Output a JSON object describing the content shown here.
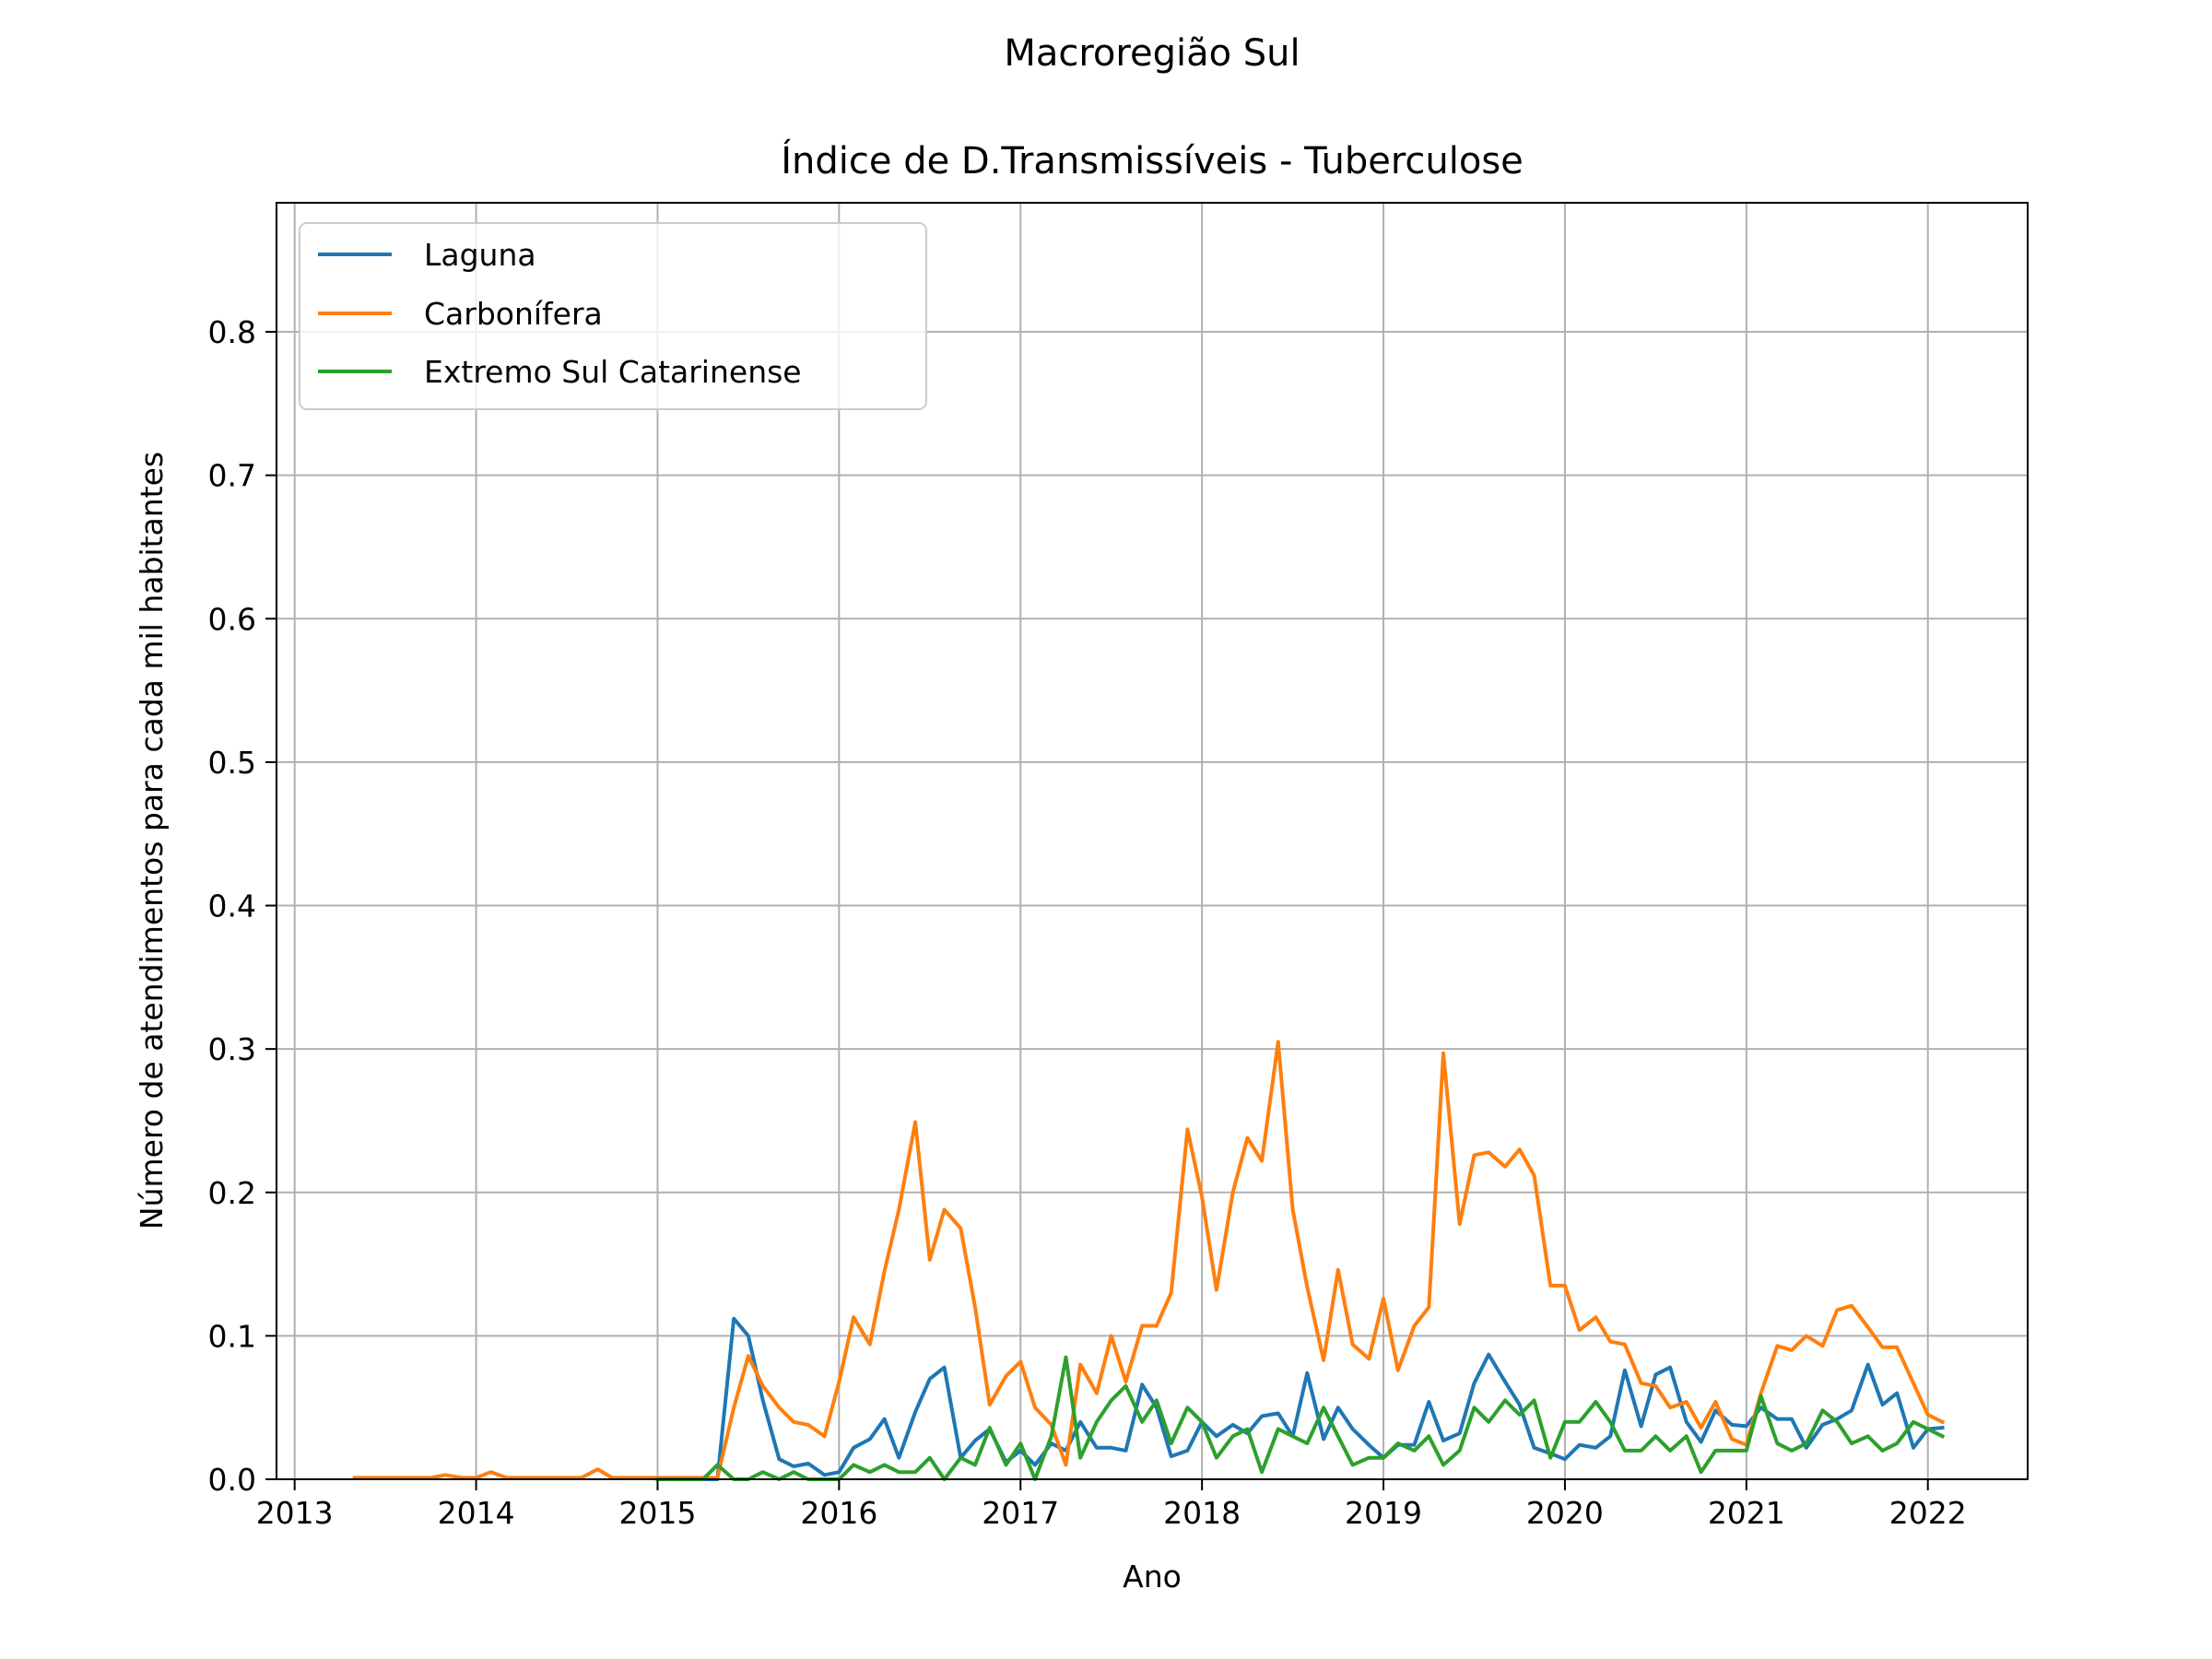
{
  "figure": {
    "suptitle": "Macroregião Sul",
    "title": "Índice de D.Transmissíveis - Tuberculose"
  },
  "chart_data": {
    "type": "line",
    "title": "Índice de D.Transmissíveis - Tuberculose",
    "xlabel": "Ano",
    "ylabel": "Número de atendimentos para cada mil habitantes",
    "xlim": [
      2012.9,
      2022.55
    ],
    "ylim": [
      0,
      0.89
    ],
    "xticks": [
      2013,
      2014,
      2015,
      2016,
      2017,
      2018,
      2019,
      2020,
      2021,
      2022
    ],
    "xtick_labels": [
      "2013",
      "2014",
      "2015",
      "2016",
      "2017",
      "2018",
      "2019",
      "2020",
      "2021",
      "2022"
    ],
    "yticks": [
      0.0,
      0.1,
      0.2,
      0.3,
      0.4,
      0.5,
      0.6,
      0.7,
      0.8
    ],
    "ytick_labels": [
      "0.0",
      "0.1",
      "0.2",
      "0.3",
      "0.4",
      "0.5",
      "0.6",
      "0.7",
      "0.8"
    ],
    "grid": true,
    "legend_position": "top-left",
    "series": [
      {
        "name": "Laguna",
        "color": "#1f77b4",
        "points": [
          [
            2015.0,
            0.0
          ],
          [
            2015.33,
            0.0
          ],
          [
            2015.42,
            0.112
          ],
          [
            2015.5,
            0.1
          ],
          [
            2015.58,
            0.055
          ],
          [
            2015.67,
            0.014
          ],
          [
            2015.75,
            0.009
          ],
          [
            2015.83,
            0.011
          ],
          [
            2015.92,
            0.003
          ],
          [
            2016.0,
            0.005
          ],
          [
            2016.08,
            0.022
          ],
          [
            2016.17,
            0.028
          ],
          [
            2016.25,
            0.042
          ],
          [
            2016.33,
            0.015
          ],
          [
            2016.42,
            0.047
          ],
          [
            2016.5,
            0.07
          ],
          [
            2016.58,
            0.078
          ],
          [
            2016.67,
            0.015
          ],
          [
            2016.75,
            0.027
          ],
          [
            2016.83,
            0.035
          ],
          [
            2016.92,
            0.012
          ],
          [
            2017.0,
            0.02
          ],
          [
            2017.08,
            0.01
          ],
          [
            2017.17,
            0.025
          ],
          [
            2017.25,
            0.02
          ],
          [
            2017.33,
            0.04
          ],
          [
            2017.42,
            0.022
          ],
          [
            2017.5,
            0.022
          ],
          [
            2017.58,
            0.02
          ],
          [
            2017.67,
            0.066
          ],
          [
            2017.75,
            0.05
          ],
          [
            2017.83,
            0.016
          ],
          [
            2017.92,
            0.02
          ],
          [
            2018.0,
            0.04
          ],
          [
            2018.08,
            0.03
          ],
          [
            2018.17,
            0.038
          ],
          [
            2018.25,
            0.032
          ],
          [
            2018.33,
            0.044
          ],
          [
            2018.42,
            0.046
          ],
          [
            2018.5,
            0.03
          ],
          [
            2018.58,
            0.074
          ],
          [
            2018.67,
            0.028
          ],
          [
            2018.75,
            0.05
          ],
          [
            2018.83,
            0.035
          ],
          [
            2018.92,
            0.024
          ],
          [
            2019.0,
            0.015
          ],
          [
            2019.08,
            0.024
          ],
          [
            2019.17,
            0.024
          ],
          [
            2019.25,
            0.054
          ],
          [
            2019.33,
            0.027
          ],
          [
            2019.42,
            0.032
          ],
          [
            2019.5,
            0.067
          ],
          [
            2019.58,
            0.087
          ],
          [
            2019.67,
            0.068
          ],
          [
            2019.75,
            0.052
          ],
          [
            2019.83,
            0.022
          ],
          [
            2019.92,
            0.018
          ],
          [
            2020.0,
            0.014
          ],
          [
            2020.08,
            0.024
          ],
          [
            2020.17,
            0.022
          ],
          [
            2020.25,
            0.03
          ],
          [
            2020.33,
            0.076
          ],
          [
            2020.42,
            0.037
          ],
          [
            2020.5,
            0.073
          ],
          [
            2020.58,
            0.078
          ],
          [
            2020.67,
            0.04
          ],
          [
            2020.75,
            0.026
          ],
          [
            2020.83,
            0.048
          ],
          [
            2020.92,
            0.038
          ],
          [
            2021.0,
            0.037
          ],
          [
            2021.08,
            0.05
          ],
          [
            2021.17,
            0.042
          ],
          [
            2021.25,
            0.042
          ],
          [
            2021.33,
            0.022
          ],
          [
            2021.42,
            0.038
          ],
          [
            2021.5,
            0.042
          ],
          [
            2021.58,
            0.048
          ],
          [
            2021.67,
            0.08
          ],
          [
            2021.75,
            0.052
          ],
          [
            2021.83,
            0.06
          ],
          [
            2021.92,
            0.022
          ],
          [
            2022.0,
            0.035
          ],
          [
            2022.08,
            0.036
          ]
        ]
      },
      {
        "name": "Carbonífera",
        "color": "#ff7f0e",
        "points": [
          [
            2013.33,
            0.001
          ],
          [
            2013.42,
            0.001
          ],
          [
            2013.5,
            0.001
          ],
          [
            2013.58,
            0.001
          ],
          [
            2013.67,
            0.001
          ],
          [
            2013.75,
            0.001
          ],
          [
            2013.83,
            0.003
          ],
          [
            2013.92,
            0.001
          ],
          [
            2014.0,
            0.001
          ],
          [
            2014.08,
            0.005
          ],
          [
            2014.17,
            0.001
          ],
          [
            2014.25,
            0.001
          ],
          [
            2014.33,
            0.001
          ],
          [
            2014.42,
            0.001
          ],
          [
            2014.5,
            0.001
          ],
          [
            2014.58,
            0.001
          ],
          [
            2014.67,
            0.007
          ],
          [
            2014.75,
            0.001
          ],
          [
            2014.83,
            0.001
          ],
          [
            2014.92,
            0.001
          ],
          [
            2015.0,
            0.001
          ],
          [
            2015.08,
            0.001
          ],
          [
            2015.17,
            0.001
          ],
          [
            2015.25,
            0.001
          ],
          [
            2015.33,
            0.001
          ],
          [
            2015.42,
            0.05
          ],
          [
            2015.5,
            0.086
          ],
          [
            2015.58,
            0.065
          ],
          [
            2015.67,
            0.05
          ],
          [
            2015.75,
            0.04
          ],
          [
            2015.83,
            0.038
          ],
          [
            2015.92,
            0.03
          ],
          [
            2016.0,
            0.068
          ],
          [
            2016.08,
            0.113
          ],
          [
            2016.17,
            0.094
          ],
          [
            2016.25,
            0.145
          ],
          [
            2016.33,
            0.188
          ],
          [
            2016.42,
            0.249
          ],
          [
            2016.5,
            0.153
          ],
          [
            2016.58,
            0.188
          ],
          [
            2016.67,
            0.175
          ],
          [
            2016.75,
            0.12
          ],
          [
            2016.83,
            0.052
          ],
          [
            2016.92,
            0.072
          ],
          [
            2017.0,
            0.082
          ],
          [
            2017.08,
            0.05
          ],
          [
            2017.17,
            0.038
          ],
          [
            2017.25,
            0.01
          ],
          [
            2017.33,
            0.08
          ],
          [
            2017.42,
            0.06
          ],
          [
            2017.5,
            0.1
          ],
          [
            2017.58,
            0.068
          ],
          [
            2017.67,
            0.107
          ],
          [
            2017.75,
            0.107
          ],
          [
            2017.83,
            0.13
          ],
          [
            2017.92,
            0.244
          ],
          [
            2018.0,
            0.197
          ],
          [
            2018.08,
            0.132
          ],
          [
            2018.17,
            0.2
          ],
          [
            2018.25,
            0.238
          ],
          [
            2018.33,
            0.222
          ],
          [
            2018.42,
            0.305
          ],
          [
            2018.5,
            0.188
          ],
          [
            2018.58,
            0.134
          ],
          [
            2018.67,
            0.083
          ],
          [
            2018.75,
            0.146
          ],
          [
            2018.83,
            0.094
          ],
          [
            2018.92,
            0.084
          ],
          [
            2019.0,
            0.126
          ],
          [
            2019.08,
            0.076
          ],
          [
            2019.17,
            0.107
          ],
          [
            2019.25,
            0.12
          ],
          [
            2019.33,
            0.297
          ],
          [
            2019.42,
            0.178
          ],
          [
            2019.5,
            0.226
          ],
          [
            2019.58,
            0.228
          ],
          [
            2019.67,
            0.218
          ],
          [
            2019.75,
            0.23
          ],
          [
            2019.83,
            0.212
          ],
          [
            2019.92,
            0.135
          ],
          [
            2020.0,
            0.135
          ],
          [
            2020.08,
            0.104
          ],
          [
            2020.17,
            0.113
          ],
          [
            2020.25,
            0.096
          ],
          [
            2020.33,
            0.094
          ],
          [
            2020.42,
            0.067
          ],
          [
            2020.5,
            0.065
          ],
          [
            2020.58,
            0.05
          ],
          [
            2020.67,
            0.054
          ],
          [
            2020.75,
            0.036
          ],
          [
            2020.83,
            0.054
          ],
          [
            2020.92,
            0.028
          ],
          [
            2021.0,
            0.024
          ],
          [
            2021.08,
            0.06
          ],
          [
            2021.17,
            0.093
          ],
          [
            2021.25,
            0.09
          ],
          [
            2021.33,
            0.1
          ],
          [
            2021.42,
            0.093
          ],
          [
            2021.5,
            0.118
          ],
          [
            2021.58,
            0.121
          ],
          [
            2021.67,
            0.106
          ],
          [
            2021.75,
            0.092
          ],
          [
            2021.83,
            0.092
          ],
          [
            2021.92,
            0.067
          ],
          [
            2022.0,
            0.045
          ],
          [
            2022.08,
            0.04
          ]
        ]
      },
      {
        "name": "Extremo Sul Catarinense",
        "color": "#2ca02c",
        "points": [
          [
            2015.0,
            0.0
          ],
          [
            2015.25,
            0.0
          ],
          [
            2015.33,
            0.01
          ],
          [
            2015.42,
            0.0
          ],
          [
            2015.5,
            0.0
          ],
          [
            2015.58,
            0.005
          ],
          [
            2015.67,
            0.0
          ],
          [
            2015.75,
            0.005
          ],
          [
            2015.83,
            0.0
          ],
          [
            2015.92,
            0.0
          ],
          [
            2016.0,
            0.0
          ],
          [
            2016.08,
            0.01
          ],
          [
            2016.17,
            0.005
          ],
          [
            2016.25,
            0.01
          ],
          [
            2016.33,
            0.005
          ],
          [
            2016.42,
            0.005
          ],
          [
            2016.5,
            0.015
          ],
          [
            2016.58,
            0.0
          ],
          [
            2016.67,
            0.015
          ],
          [
            2016.75,
            0.01
          ],
          [
            2016.83,
            0.036
          ],
          [
            2016.92,
            0.01
          ],
          [
            2017.0,
            0.025
          ],
          [
            2017.08,
            0.0
          ],
          [
            2017.17,
            0.03
          ],
          [
            2017.25,
            0.085
          ],
          [
            2017.33,
            0.015
          ],
          [
            2017.42,
            0.04
          ],
          [
            2017.5,
            0.055
          ],
          [
            2017.58,
            0.065
          ],
          [
            2017.67,
            0.04
          ],
          [
            2017.75,
            0.055
          ],
          [
            2017.83,
            0.025
          ],
          [
            2017.92,
            0.05
          ],
          [
            2018.0,
            0.04
          ],
          [
            2018.08,
            0.015
          ],
          [
            2018.17,
            0.03
          ],
          [
            2018.25,
            0.035
          ],
          [
            2018.33,
            0.005
          ],
          [
            2018.42,
            0.035
          ],
          [
            2018.5,
            0.03
          ],
          [
            2018.58,
            0.025
          ],
          [
            2018.67,
            0.05
          ],
          [
            2018.75,
            0.03
          ],
          [
            2018.83,
            0.01
          ],
          [
            2018.92,
            0.015
          ],
          [
            2019.0,
            0.015
          ],
          [
            2019.08,
            0.025
          ],
          [
            2019.17,
            0.02
          ],
          [
            2019.25,
            0.03
          ],
          [
            2019.33,
            0.01
          ],
          [
            2019.42,
            0.02
          ],
          [
            2019.5,
            0.05
          ],
          [
            2019.58,
            0.04
          ],
          [
            2019.67,
            0.055
          ],
          [
            2019.75,
            0.045
          ],
          [
            2019.83,
            0.055
          ],
          [
            2019.92,
            0.015
          ],
          [
            2020.0,
            0.04
          ],
          [
            2020.08,
            0.04
          ],
          [
            2020.17,
            0.054
          ],
          [
            2020.25,
            0.04
          ],
          [
            2020.33,
            0.02
          ],
          [
            2020.42,
            0.02
          ],
          [
            2020.5,
            0.03
          ],
          [
            2020.58,
            0.02
          ],
          [
            2020.67,
            0.03
          ],
          [
            2020.75,
            0.005
          ],
          [
            2020.83,
            0.02
          ],
          [
            2020.92,
            0.02
          ],
          [
            2021.0,
            0.02
          ],
          [
            2021.08,
            0.058
          ],
          [
            2021.17,
            0.025
          ],
          [
            2021.25,
            0.02
          ],
          [
            2021.33,
            0.025
          ],
          [
            2021.42,
            0.048
          ],
          [
            2021.5,
            0.04
          ],
          [
            2021.58,
            0.025
          ],
          [
            2021.67,
            0.03
          ],
          [
            2021.75,
            0.02
          ],
          [
            2021.83,
            0.025
          ],
          [
            2021.92,
            0.04
          ],
          [
            2022.0,
            0.035
          ],
          [
            2022.08,
            0.03
          ]
        ]
      }
    ]
  }
}
